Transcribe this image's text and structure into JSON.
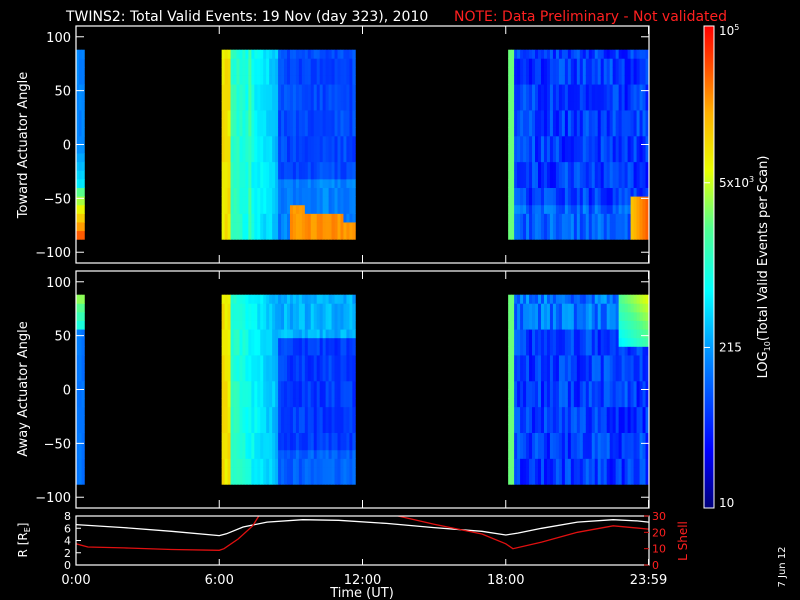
{
  "title": {
    "main": "TWINS2: Total Valid Events: 19 Nov (day 323), 2010",
    "note": "NOTE: Data Preliminary - Not validated"
  },
  "colors": {
    "background": "#000000",
    "frame": "#ffffff",
    "note": "#ff2020",
    "r_line": "#ffffff",
    "lshell_line": "#e01010"
  },
  "colorbar": {
    "label": "LOG10(Total Valid Events per Scan)",
    "label_base": "LOG",
    "label_sub": "10",
    "label_rest": "(Total Valid Events per Scan)",
    "scale": "log",
    "range": [
      10,
      100000
    ],
    "colormap": "rainbow",
    "ticks": [
      {
        "value": 100000,
        "label": "10",
        "sup": "5"
      },
      {
        "value": 5000,
        "label": "5x10",
        "sup": "3"
      },
      {
        "value": 215,
        "label": "215",
        "sup": ""
      },
      {
        "value": 10,
        "label": "10",
        "sup": ""
      }
    ]
  },
  "x_axis": {
    "label": "Time (UT)",
    "range_hours": [
      0,
      24
    ],
    "ticks": [
      {
        "hour": 0,
        "label": "0:00"
      },
      {
        "hour": 6,
        "label": "6:00"
      },
      {
        "hour": 12,
        "label": "12:00"
      },
      {
        "hour": 18,
        "label": "18:00"
      },
      {
        "hour": 23.98,
        "label": "23:59"
      }
    ]
  },
  "chart_data": [
    {
      "type": "heatmap",
      "ylabel": "Toward Actuator Angle",
      "ylim": [
        -110,
        110
      ],
      "yticks": [
        100,
        50,
        0,
        -50,
        -100
      ],
      "data_y_range": [
        -88,
        88
      ],
      "colorbar": "LOG10(Total Valid Events per Scan)",
      "intervals": [
        {
          "start_hour": 0.0,
          "end_hour": 0.35,
          "pattern": "edge-toward"
        },
        {
          "start_hour": 6.1,
          "end_hour": 11.7,
          "pattern": "main-toward"
        },
        {
          "start_hour": 18.1,
          "end_hour": 23.98,
          "pattern": "late-toward"
        }
      ]
    },
    {
      "type": "heatmap",
      "ylabel": "Away Actuator Angle",
      "ylim": [
        -110,
        110
      ],
      "yticks": [
        100,
        50,
        0,
        -50,
        -100
      ],
      "data_y_range": [
        -88,
        88
      ],
      "colorbar": "LOG10(Total Valid Events per Scan)",
      "intervals": [
        {
          "start_hour": 0.0,
          "end_hour": 0.35,
          "pattern": "edge-away"
        },
        {
          "start_hour": 6.1,
          "end_hour": 11.7,
          "pattern": "main-away"
        },
        {
          "start_hour": 18.1,
          "end_hour": 23.98,
          "pattern": "late-away"
        }
      ]
    },
    {
      "type": "line",
      "ylabel": "R [RE]",
      "ylabel_base": "R [R",
      "ylabel_sub": "E",
      "ylabel_end": "]",
      "ylim": [
        0,
        8
      ],
      "yticks": [
        0,
        2,
        4,
        6,
        8
      ],
      "y2label": "L Shell",
      "y2lim": [
        0,
        30
      ],
      "y2ticks": [
        0,
        10,
        20,
        30
      ],
      "series": [
        {
          "name": "R [RE]",
          "axis": "left",
          "x": [
            0,
            2,
            4,
            6,
            6.3,
            7,
            8,
            9.5,
            11,
            13,
            15,
            17,
            18,
            18.5,
            19.5,
            21,
            22.5,
            23.5,
            23.98
          ],
          "y": [
            6.6,
            6.1,
            5.5,
            4.8,
            5.1,
            6.2,
            7.0,
            7.4,
            7.3,
            6.8,
            6.1,
            5.5,
            4.9,
            5.2,
            6.0,
            7.0,
            7.4,
            7.2,
            7.0
          ]
        },
        {
          "name": "L Shell",
          "axis": "right",
          "segments": [
            {
              "x": [
                0,
                0.5,
                2,
                4,
                6,
                6.2,
                6.8,
                7.4,
                7.7
              ],
              "y": [
                13,
                11,
                10.5,
                9.5,
                9,
                10,
                16,
                24,
                31
              ]
            },
            {
              "x": [
                13.2,
                15,
                17,
                18,
                18.3,
                19.5,
                21,
                22.5,
                23.98
              ],
              "y": [
                31,
                25,
                19,
                13,
                10,
                14,
                20,
                24,
                22
              ]
            }
          ]
        }
      ]
    }
  ],
  "timestamp": "7 Jun 12"
}
